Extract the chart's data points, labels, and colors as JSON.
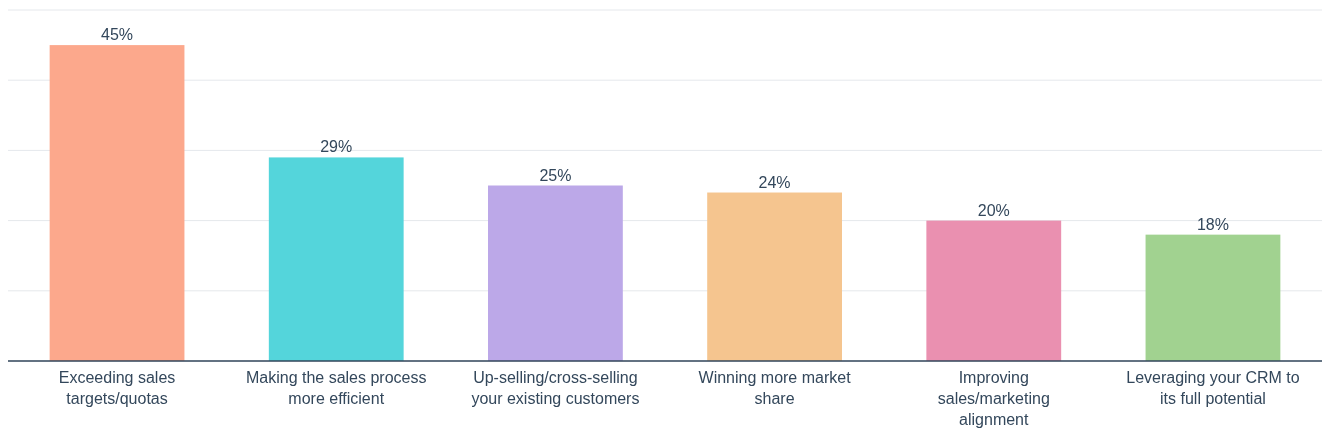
{
  "chart_data": {
    "type": "bar",
    "categories": [
      "Exceeding sales targets/quotas",
      "Making the sales process more efficient",
      "Up-selling/cross-selling your existing customers",
      "Winning more market share",
      "Improving sales/marketing alignment",
      "Leveraging your CRM to its full potential"
    ],
    "values": [
      45,
      29,
      25,
      24,
      20,
      18
    ],
    "colors": [
      "#fca88c",
      "#54d5db",
      "#bca8e8",
      "#f5c58f",
      "#ea90b0",
      "#a1d290"
    ],
    "ylim": [
      0,
      50
    ],
    "yticks": [
      {
        "value": 0,
        "label": null
      },
      {
        "value": 10,
        "label": null
      },
      {
        "value": 20,
        "label": null
      },
      {
        "value": 30,
        "label": null
      },
      {
        "value": 40,
        "label": null
      },
      {
        "value": 50,
        "label": null
      }
    ],
    "grid": "y",
    "tick_labels": "x",
    "data_labels": true,
    "value_labels": [
      "45%",
      "29%",
      "25%",
      "24%",
      "20%",
      "18%"
    ]
  }
}
